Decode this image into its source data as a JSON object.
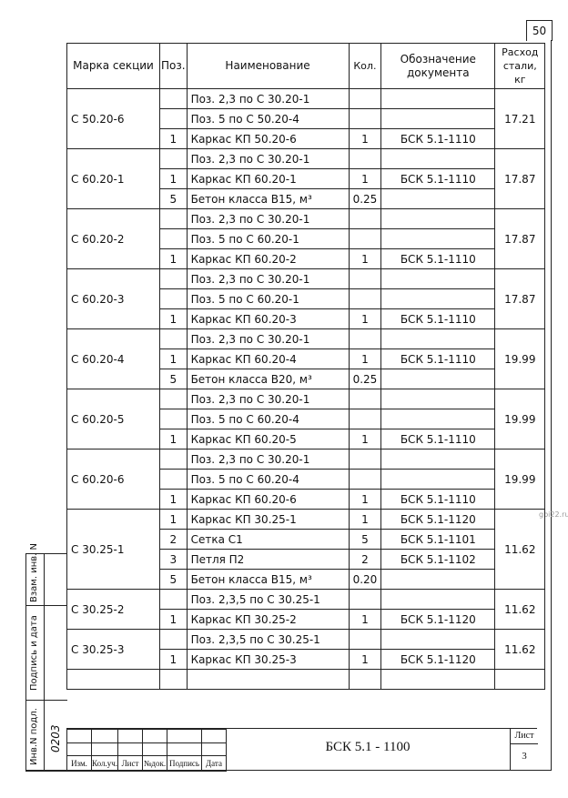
{
  "sheet_corner_number": "50",
  "watermark": "gbi22.ru",
  "headers": {
    "mark": "Марка секции",
    "pos": "Поз.",
    "name": "Наименование",
    "kol": "Кол.",
    "doc": "Обозначение документа",
    "rashod": "Расход стали, кг"
  },
  "groups": [
    {
      "mark": "С 50.20-6",
      "rashod": "17.21",
      "rows": [
        {
          "pos": "",
          "name": "Поз. 2,3 по С 30.20-1",
          "kol": "",
          "doc": ""
        },
        {
          "pos": "",
          "name": "Поз. 5 по С 50.20-4",
          "kol": "",
          "doc": ""
        },
        {
          "pos": "1",
          "name": "Каркас КП 50.20-6",
          "kol": "1",
          "doc": "БСК 5.1-1110"
        }
      ]
    },
    {
      "mark": "С 60.20-1",
      "rashod": "17.87",
      "rows": [
        {
          "pos": "",
          "name": "Поз. 2,3 по С 30.20-1",
          "kol": "",
          "doc": ""
        },
        {
          "pos": "1",
          "name": "Каркас КП 60.20-1",
          "kol": "1",
          "doc": "БСК 5.1-1110"
        },
        {
          "pos": "5",
          "name": "Бетон класса В15, м³",
          "kol": "0.25",
          "doc": ""
        }
      ]
    },
    {
      "mark": "С 60.20-2",
      "rashod": "17.87",
      "rows": [
        {
          "pos": "",
          "name": "Поз. 2,3 по С 30.20-1",
          "kol": "",
          "doc": ""
        },
        {
          "pos": "",
          "name": "Поз. 5 по С 60.20-1",
          "kol": "",
          "doc": ""
        },
        {
          "pos": "1",
          "name": "Каркас КП 60.20-2",
          "kol": "1",
          "doc": "БСК 5.1-1110"
        }
      ]
    },
    {
      "mark": "С 60.20-3",
      "rashod": "17.87",
      "rows": [
        {
          "pos": "",
          "name": "Поз. 2,3 по С 30.20-1",
          "kol": "",
          "doc": ""
        },
        {
          "pos": "",
          "name": "Поз. 5 по С 60.20-1",
          "kol": "",
          "doc": ""
        },
        {
          "pos": "1",
          "name": "Каркас КП 60.20-3",
          "kol": "1",
          "doc": "БСК 5.1-1110"
        }
      ]
    },
    {
      "mark": "С 60.20-4",
      "rashod": "19.99",
      "rows": [
        {
          "pos": "",
          "name": "Поз. 2,3 по С 30.20-1",
          "kol": "",
          "doc": ""
        },
        {
          "pos": "1",
          "name": "Каркас КП 60.20-4",
          "kol": "1",
          "doc": "БСК 5.1-1110"
        },
        {
          "pos": "5",
          "name": "Бетон класса В20, м³",
          "kol": "0.25",
          "doc": ""
        }
      ]
    },
    {
      "mark": "С 60.20-5",
      "rashod": "19.99",
      "rows": [
        {
          "pos": "",
          "name": "Поз. 2,3 по С 30.20-1",
          "kol": "",
          "doc": ""
        },
        {
          "pos": "",
          "name": "Поз. 5 по С 60.20-4",
          "kol": "",
          "doc": ""
        },
        {
          "pos": "1",
          "name": "Каркас КП 60.20-5",
          "kol": "1",
          "doc": "БСК 5.1-1110"
        }
      ]
    },
    {
      "mark": "С 60.20-6",
      "rashod": "19.99",
      "rows": [
        {
          "pos": "",
          "name": "Поз. 2,3 по С 30.20-1",
          "kol": "",
          "doc": ""
        },
        {
          "pos": "",
          "name": "Поз. 5 по С 60.20-4",
          "kol": "",
          "doc": ""
        },
        {
          "pos": "1",
          "name": "Каркас КП 60.20-6",
          "kol": "1",
          "doc": "БСК 5.1-1110"
        }
      ]
    },
    {
      "mark": "С 30.25-1",
      "rashod": "11.62",
      "rows": [
        {
          "pos": "1",
          "name": "Каркас КП 30.25-1",
          "kol": "1",
          "doc": "БСК 5.1-1120"
        },
        {
          "pos": "2",
          "name": "Сетка  С1",
          "kol": "5",
          "doc": "БСК 5.1-1101"
        },
        {
          "pos": "3",
          "name": "Петля П2",
          "kol": "2",
          "doc": "БСК 5.1-1102"
        },
        {
          "pos": "5",
          "name": "Бетон класса В15, м³",
          "kol": "0.20",
          "doc": ""
        }
      ]
    },
    {
      "mark": "С 30.25-2",
      "rashod": "11.62",
      "rows": [
        {
          "pos": "",
          "name": "Поз. 2,3,5 по С 30.25-1",
          "kol": "",
          "doc": ""
        },
        {
          "pos": "1",
          "name": "Каркас КП 30.25-2",
          "kol": "1",
          "doc": "БСК 5.1-1120"
        }
      ]
    },
    {
      "mark": "С 30.25-3",
      "rashod": "11.62",
      "rows": [
        {
          "pos": "",
          "name": "Поз. 2,3,5 по С 30.25-1",
          "kol": "",
          "doc": ""
        },
        {
          "pos": "1",
          "name": "Каркас КП 30.25-3",
          "kol": "1",
          "doc": "БСК 5.1-1120"
        }
      ]
    }
  ],
  "side_stamp": {
    "vzam": "Взам. инв. N",
    "podpis": "Подпись и дата",
    "inv": "Инв.N подл.",
    "inv_number": "0203"
  },
  "title_block": {
    "cols": [
      "Изм.",
      "Кол.уч.",
      "Лист",
      "№док.",
      "Подпись",
      "Дата"
    ],
    "designation": "БСК 5.1 - 1100",
    "sheet_label": "Лист",
    "sheet_number": "3"
  }
}
